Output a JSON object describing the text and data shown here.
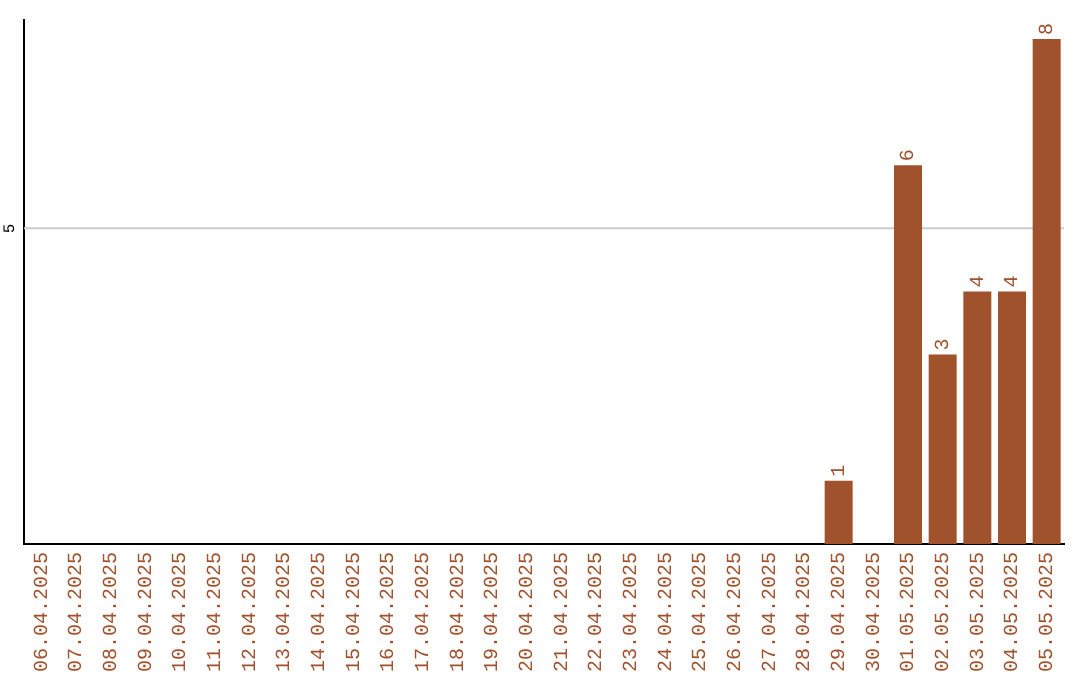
{
  "chart_data": {
    "type": "bar",
    "categories": [
      "06.04.2025",
      "07.04.2025",
      "08.04.2025",
      "09.04.2025",
      "10.04.2025",
      "11.04.2025",
      "12.04.2025",
      "13.04.2025",
      "14.04.2025",
      "15.04.2025",
      "16.04.2025",
      "17.04.2025",
      "18.04.2025",
      "19.04.2025",
      "20.04.2025",
      "21.04.2025",
      "22.04.2025",
      "23.04.2025",
      "24.04.2025",
      "25.04.2025",
      "26.04.2025",
      "27.04.2025",
      "28.04.2025",
      "29.04.2025",
      "30.04.2025",
      "01.05.2025",
      "02.05.2025",
      "03.05.2025",
      "04.05.2025",
      "05.05.2025"
    ],
    "values": [
      null,
      null,
      null,
      null,
      null,
      null,
      null,
      null,
      null,
      null,
      null,
      null,
      null,
      null,
      null,
      null,
      null,
      null,
      null,
      null,
      null,
      null,
      null,
      1,
      null,
      6,
      3,
      4,
      4,
      8
    ],
    "data_labels": true,
    "color": "#a0522d",
    "ylim": [
      0,
      8.3
    ],
    "ref_lines": [
      {
        "axis": "y",
        "value": 5,
        "label": "5",
        "color": "#cccccc"
      }
    ],
    "legend": false
  }
}
